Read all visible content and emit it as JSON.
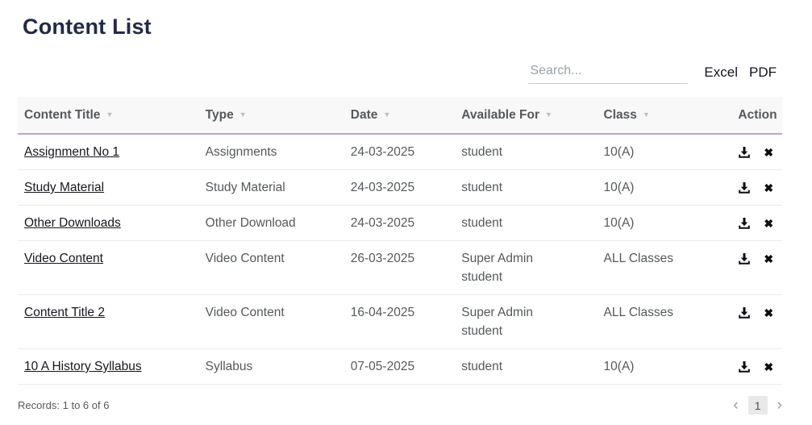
{
  "page": {
    "title": "Content List"
  },
  "toolbar": {
    "search_placeholder": "Search...",
    "excel_label": "Excel",
    "pdf_label": "PDF"
  },
  "table": {
    "columns": [
      {
        "label": "Content Title",
        "sortable": true
      },
      {
        "label": "Type",
        "sortable": true
      },
      {
        "label": "Date",
        "sortable": true
      },
      {
        "label": "Available For",
        "sortable": true
      },
      {
        "label": "Class",
        "sortable": true
      },
      {
        "label": "Action",
        "sortable": false
      }
    ],
    "rows": [
      {
        "title": "Assignment No 1",
        "type": "Assignments",
        "date": "24-03-2025",
        "available_for": [
          "student"
        ],
        "class": "10(A)"
      },
      {
        "title": "Study Material",
        "type": "Study Material",
        "date": "24-03-2025",
        "available_for": [
          "student"
        ],
        "class": "10(A)"
      },
      {
        "title": "Other Downloads",
        "type": "Other Download",
        "date": "24-03-2025",
        "available_for": [
          "student"
        ],
        "class": "10(A)"
      },
      {
        "title": "Video Content",
        "type": "Video Content",
        "date": "26-03-2025",
        "available_for": [
          "Super Admin",
          "student"
        ],
        "class": "ALL Classes"
      },
      {
        "title": "Content Title 2",
        "type": "Video Content",
        "date": "16-04-2025",
        "available_for": [
          "Super Admin",
          "student"
        ],
        "class": "ALL Classes"
      },
      {
        "title": "10 A History Syllabus",
        "type": "Syllabus",
        "date": "07-05-2025",
        "available_for": [
          "student"
        ],
        "class": "10(A)"
      }
    ]
  },
  "footer": {
    "records_text": "Records: 1 to 6 of 6",
    "pagination": {
      "prev": "‹",
      "current_page": "1",
      "next": "›"
    }
  },
  "icons": {
    "sort_caret": "▼",
    "download": "⤓",
    "delete": "✖",
    "page_prev": "‹",
    "page_next": "›"
  },
  "colors": {
    "title_text": "#222b45",
    "header_bg": "#f8f8f9",
    "header_border": "#c6a0cb",
    "body_text": "#55595c",
    "link_text": "#15171f",
    "row_border": "#ececec",
    "page_number_bg": "#e9e9e9"
  }
}
